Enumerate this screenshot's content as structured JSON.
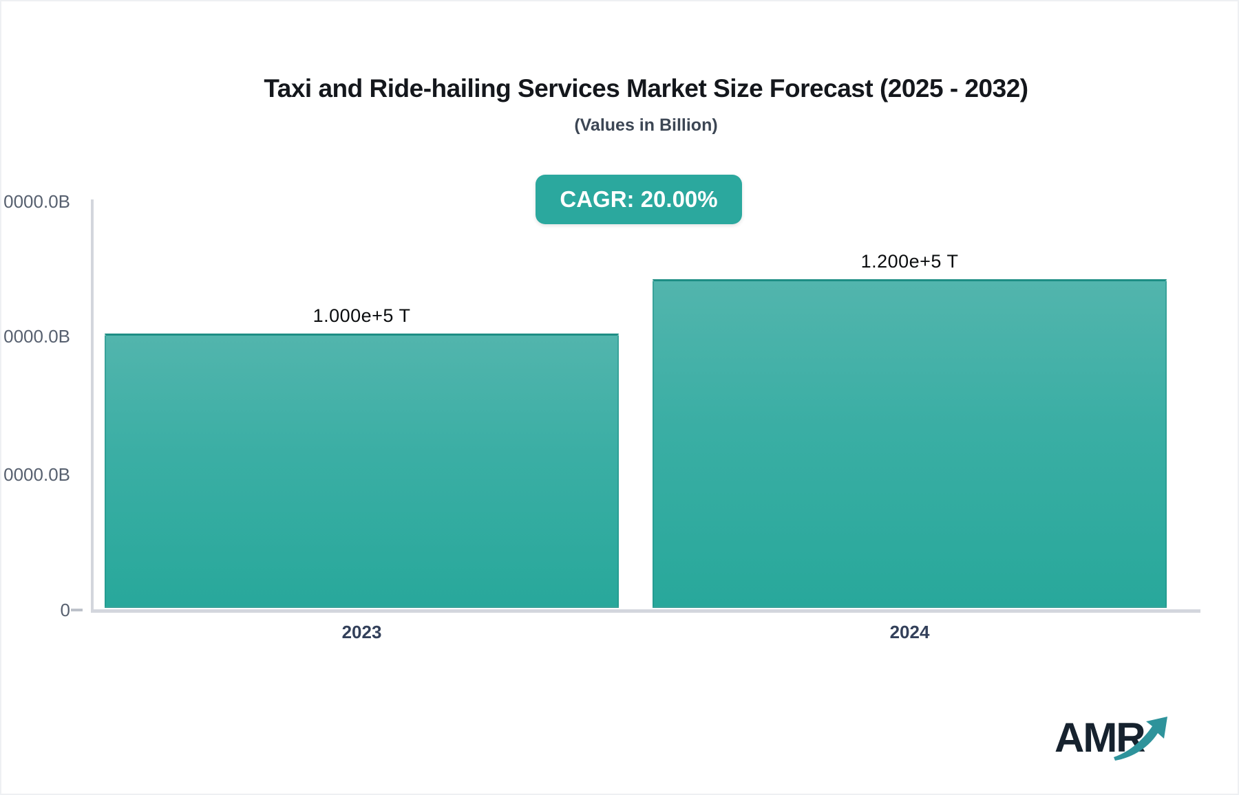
{
  "header": {
    "title": "Taxi and Ride-hailing Services Market Size Forecast (2025 - 2032)",
    "subtitle": "(Values in Billion)",
    "cagr_badge": "CAGR: 20.00%"
  },
  "y_axis": {
    "tick_labels": [
      "0000.0B",
      "0000.0B",
      "0000.0B"
    ],
    "zero_label": "0"
  },
  "chart_data": {
    "type": "bar",
    "categories": [
      "2023",
      "2024"
    ],
    "values": [
      100000,
      120000
    ],
    "bar_labels": [
      "1.000e+5 T",
      "1.200e+5 T"
    ],
    "title": "Taxi and Ride-hailing Services Market Size Forecast (2025 - 2032)",
    "subtitle": "(Values in Billion)",
    "cagr": "20.00%",
    "xlabel": "",
    "ylabel": "",
    "ylim": [
      0,
      150000
    ],
    "y_ticks_visible": [
      "0",
      "0000.0B",
      "0000.0B",
      "0000.0B"
    ],
    "grid": false,
    "legend": false,
    "bar_color_top": "#52B5AD",
    "bar_color_bottom": "#28A89B",
    "bar_border_color": "#1E8E84"
  },
  "colors": {
    "accent": "#2BA89E",
    "axis": "#D3D6DD",
    "title_text": "#14171C",
    "logo_arrow": "#2E939B"
  },
  "logo": {
    "text": "AMR",
    "icon": "growth-arrow-icon"
  }
}
